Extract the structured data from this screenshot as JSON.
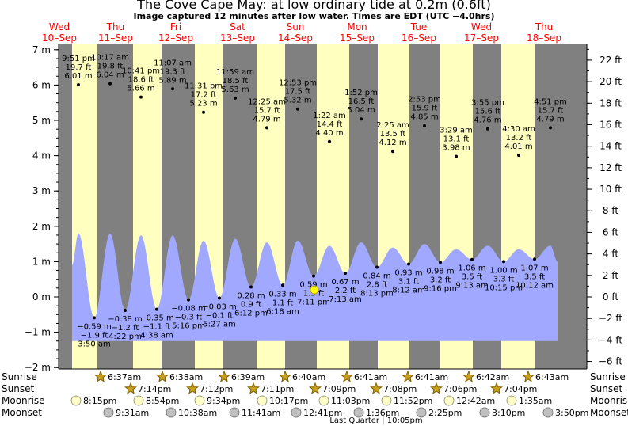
{
  "title": "The Cove Cape May: at low  ordinary tide at 0.2m (0.6ft)",
  "subtitle": "Image captured 12 minutes after low water. Times are EDT (UTC −4.0hrs)",
  "colors": {
    "night": "#808080",
    "day": "#ffffc0",
    "tide": "#a0a8ff",
    "day_label": "#ff0000",
    "grid": "#000000"
  },
  "chart_data": {
    "type": "area",
    "title": "The Cove Cape May: at low  ordinary tide at 0.2m (0.6ft)",
    "left_axis": {
      "unit": "m",
      "ticks": [
        "7 m",
        "6 m",
        "5 m",
        "4 m",
        "3 m",
        "2 m",
        "1 m",
        "0 m",
        "−1 m",
        "−2 m"
      ],
      "range": [
        -2,
        7.3
      ]
    },
    "right_axis": {
      "unit": "ft",
      "ticks": [
        "22 ft",
        "20 ft",
        "18 ft",
        "16 ft",
        "14 ft",
        "12 ft",
        "10 ft",
        "8 ft",
        "6 ft",
        "4 ft",
        "2 ft",
        "0 ft",
        "−2 ft",
        "−4 ft",
        "−6 ft"
      ]
    },
    "days": [
      {
        "dow": "Wed",
        "date": "10–Sep",
        "dow_color": "red"
      },
      {
        "dow": "Thu",
        "date": "11–Sep",
        "dow_color": "red"
      },
      {
        "dow": "Fri",
        "date": "12–Sep",
        "dow_color": "red"
      },
      {
        "dow": "Sat",
        "date": "13–Sep",
        "dow_color": "red"
      },
      {
        "dow": "Sun",
        "date": "14–Sep",
        "dow_color": "red"
      },
      {
        "dow": "Mon",
        "date": "15–Sep",
        "dow_color": "red"
      },
      {
        "dow": "Tue",
        "date": "16–Sep",
        "dow_color": "red"
      },
      {
        "dow": "Wed",
        "date": "17–Sep",
        "dow_color": "red"
      },
      {
        "dow": "Thu",
        "date": "18–Sep",
        "dow_color": "red"
      }
    ],
    "high_tides": [
      {
        "time": "9:51 pm",
        "ft": "19.7 ft",
        "m": "6.01 m",
        "value": 6.01
      },
      {
        "time": "10:17 am",
        "ft": "19.8 ft",
        "m": "6.04 m",
        "value": 6.04
      },
      {
        "time": "10:41 pm",
        "ft": "18.6 ft",
        "m": "5.66 m",
        "value": 5.66
      },
      {
        "time": "11:07 am",
        "ft": "19.3 ft",
        "m": "5.89 m",
        "value": 5.89
      },
      {
        "time": "11:31 pm",
        "ft": "17.2 ft",
        "m": "5.23 m",
        "value": 5.23
      },
      {
        "time": "11:59 am",
        "ft": "18.5 ft",
        "m": "5.63 m",
        "value": 5.63
      },
      {
        "time": "12:25 am",
        "ft": "15.7 ft",
        "m": "4.79 m",
        "value": 4.79
      },
      {
        "time": "12:53 pm",
        "ft": "17.5 ft",
        "m": "5.32 m",
        "value": 5.32
      },
      {
        "time": "1:22 am",
        "ft": "14.4 ft",
        "m": "4.40 m",
        "value": 4.4
      },
      {
        "time": "1:52 pm",
        "ft": "16.5 ft",
        "m": "5.04 m",
        "value": 5.04
      },
      {
        "time": "2:25 am",
        "ft": "13.5 ft",
        "m": "4.12 m",
        "value": 4.12
      },
      {
        "time": "2:53 pm",
        "ft": "15.9 ft",
        "m": "4.85 m",
        "value": 4.85
      },
      {
        "time": "3:29 am",
        "ft": "13.1 ft",
        "m": "3.98 m",
        "value": 3.98
      },
      {
        "time": "3:55 pm",
        "ft": "15.6 ft",
        "m": "4.76 m",
        "value": 4.76
      },
      {
        "time": "4:30 am",
        "ft": "13.2 ft",
        "m": "4.01 m",
        "value": 4.01
      },
      {
        "time": "4:51 pm",
        "ft": "15.7 ft",
        "m": "4.79 m",
        "value": 4.79
      }
    ],
    "low_tides": [
      {
        "time": "3:50 am",
        "ft": "−1.9 ft",
        "m": "−0.59 m",
        "value": -0.59,
        "label_below": true
      },
      {
        "time": "4:22 pm",
        "ft": "−1.2 ft",
        "m": "−0.38 m",
        "value": -0.38,
        "label_below": true
      },
      {
        "time": "4:38 am",
        "ft": "−1.1 ft",
        "m": "−0.35 m",
        "value": -0.35,
        "label_below": true
      },
      {
        "time": "5:16 pm",
        "ft": "−0.3 ft",
        "m": "−0.08 m",
        "value": -0.08,
        "label_below": true
      },
      {
        "time": "5:27 am",
        "ft": "−0.1 ft",
        "m": "−0.03 m",
        "value": -0.03,
        "label_below": true
      },
      {
        "time": "6:12 pm",
        "ft": "0.9 ft",
        "m": "0.28 m",
        "value": 0.28,
        "label_below": true
      },
      {
        "time": "6:18 am",
        "ft": "1.1 ft",
        "m": "0.33 m",
        "value": 0.33,
        "label_below": true
      },
      {
        "time": "7:11 pm",
        "ft": "1.9 ft",
        "m": "0.59 m",
        "value": 0.59,
        "label_below": true
      },
      {
        "time": "7:13 am",
        "ft": "2.2 ft",
        "m": "0.67 m",
        "value": 0.67,
        "label_below": true
      },
      {
        "time": "8:13 pm",
        "ft": "2.8 ft",
        "m": "0.84 m",
        "value": 0.84,
        "label_below": true
      },
      {
        "time": "8:12 am",
        "ft": "3.1 ft",
        "m": "0.93 m",
        "value": 0.93,
        "label_below": true
      },
      {
        "time": "9:16 pm",
        "ft": "3.2 ft",
        "m": "0.98 m",
        "value": 0.98,
        "label_below": true
      },
      {
        "time": "9:13 am",
        "ft": "3.5 ft",
        "m": "1.06 m",
        "value": 1.06,
        "label_below": true
      },
      {
        "time": "10:15 pm",
        "ft": "3.3 ft",
        "m": "1.00 m",
        "value": 1.0,
        "label_below": true
      },
      {
        "time": "10:12 am",
        "ft": "3.5 ft",
        "m": "1.07 m",
        "value": 1.07,
        "label_below": true
      }
    ],
    "current_marker": {
      "value": 0.2
    }
  },
  "rows": {
    "sunrise": {
      "label": "Sunrise",
      "times": [
        "6:37am",
        "6:38am",
        "6:39am",
        "6:40am",
        "6:41am",
        "6:41am",
        "6:42am",
        "6:43am"
      ]
    },
    "sunset": {
      "label": "Sunset",
      "times": [
        "7:14pm",
        "7:12pm",
        "7:11pm",
        "7:09pm",
        "7:08pm",
        "7:06pm",
        "7:04pm"
      ]
    },
    "moonrise": {
      "label": "Moonrise",
      "times": [
        "8:15pm",
        "8:54pm",
        "9:34pm",
        "10:17pm",
        "11:03pm",
        "11:52pm",
        "12:42am",
        "1:35am"
      ]
    },
    "moonset": {
      "label": "Moonset",
      "times": [
        "9:31am",
        "10:38am",
        "11:41am",
        "12:41pm",
        "1:36pm",
        "2:25pm",
        "3:10pm",
        "3:50pm"
      ]
    }
  },
  "moon_phase": "Last Quarter | 10:05pm"
}
